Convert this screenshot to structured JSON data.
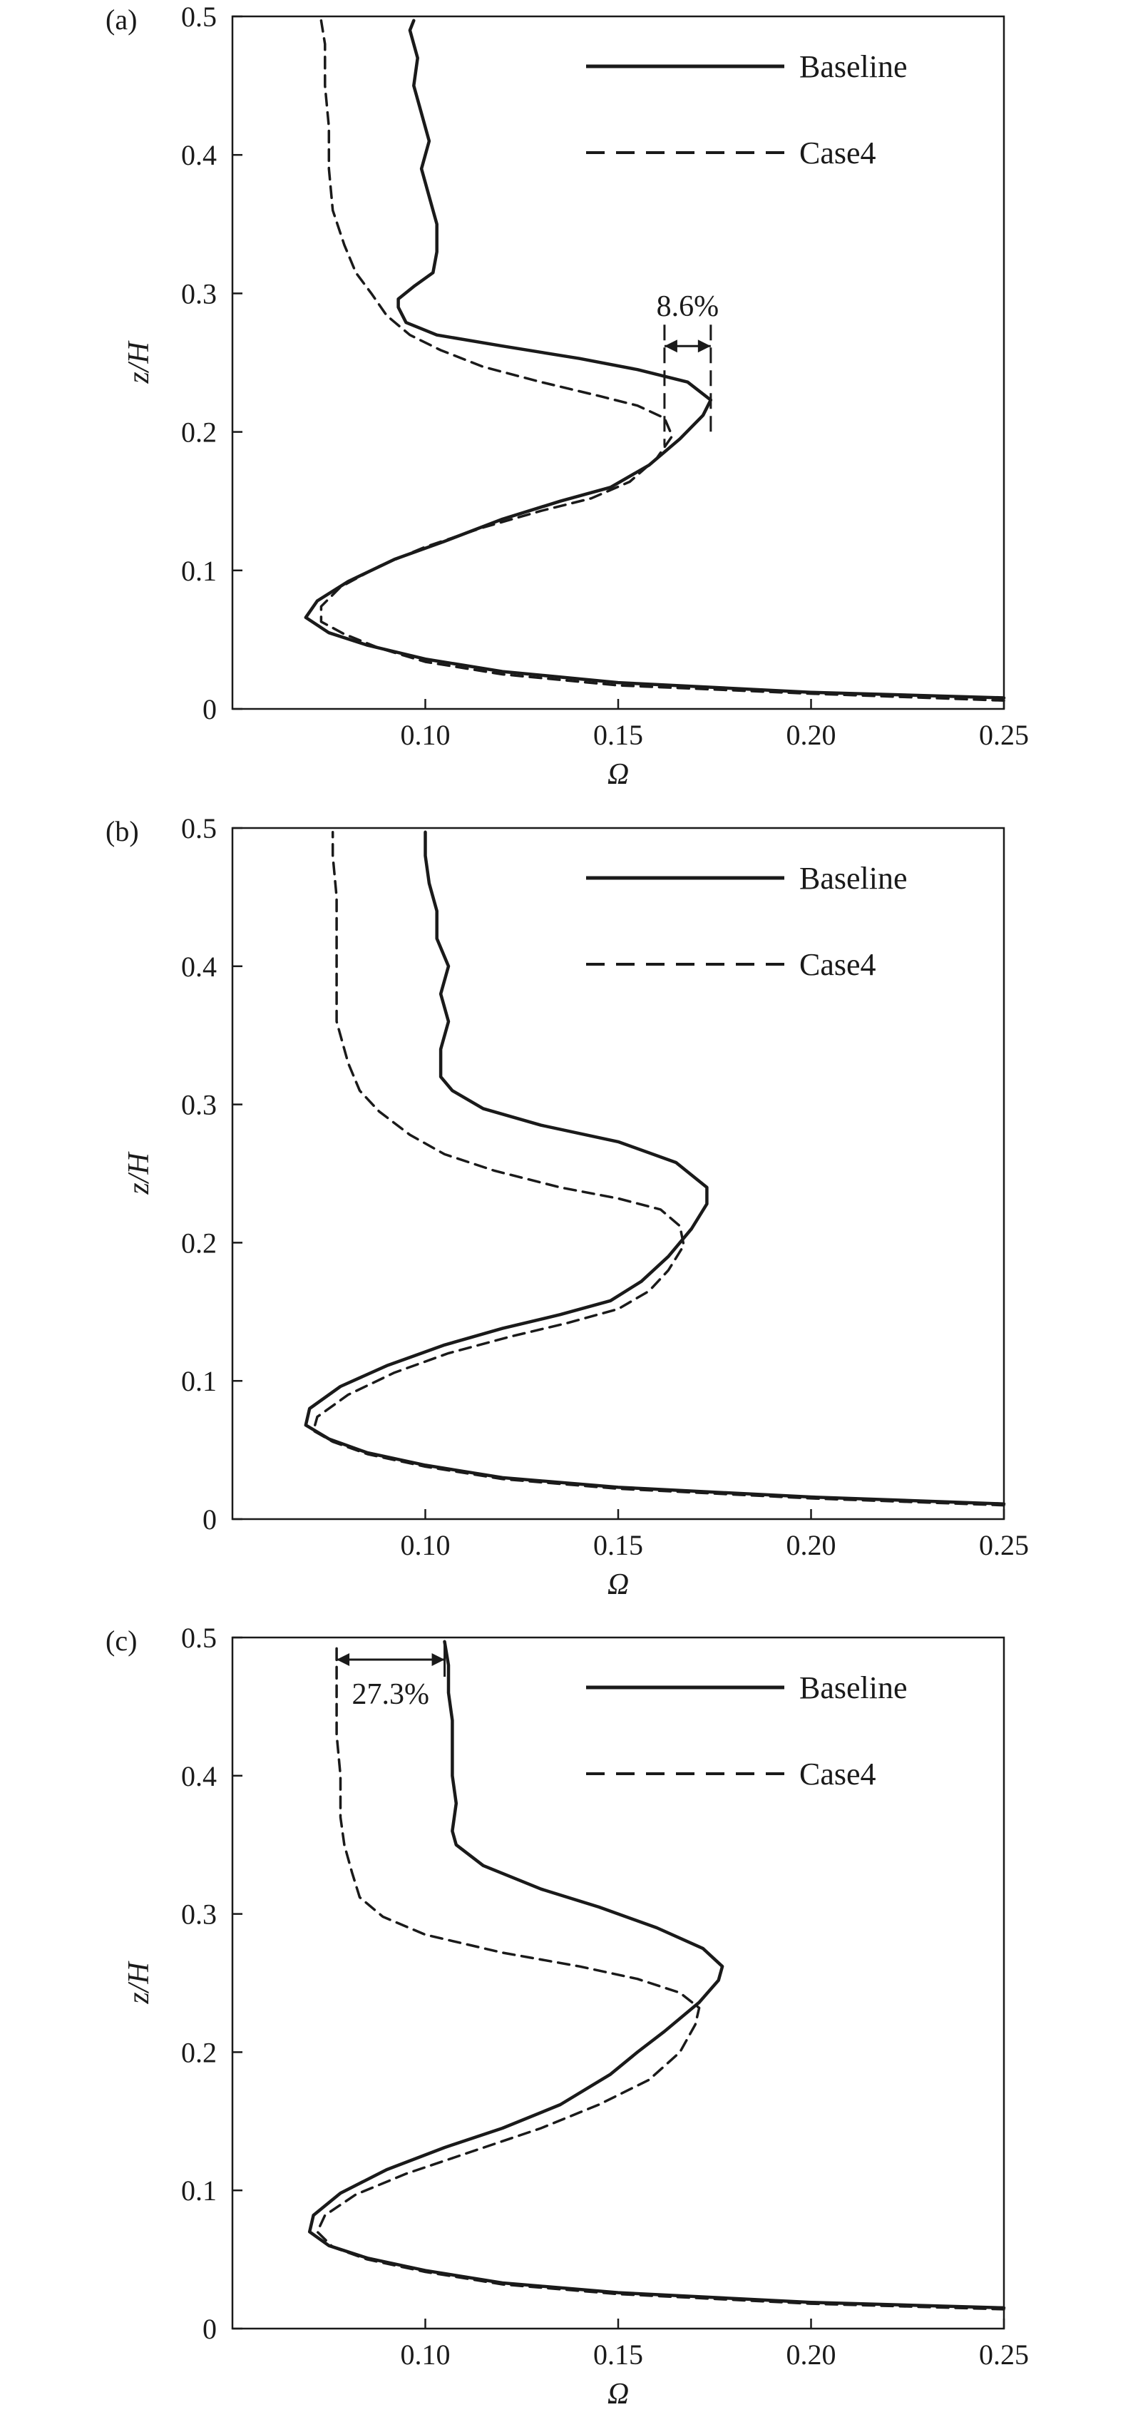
{
  "figure": {
    "colors": {
      "line": "#1a1a1a",
      "background": "#ffffff"
    }
  },
  "chart_data": [
    {
      "panel_label": "(a)",
      "type": "line",
      "xlabel": "Ω",
      "ylabel": "z/H",
      "xlim": [
        0.05,
        0.25
      ],
      "ylim": [
        0,
        0.5
      ],
      "xticks": [
        "0.10",
        "0.15",
        "0.20",
        "0.25"
      ],
      "yticks": [
        "0",
        "0.1",
        "0.2",
        "0.3",
        "0.4",
        "0.5"
      ],
      "grid": false,
      "legend_position": "top-right",
      "series": [
        {
          "name": "Baseline",
          "style": "solid",
          "points": [
            [
              0.25,
              0.008
            ],
            [
              0.2,
              0.012
            ],
            [
              0.15,
              0.019
            ],
            [
              0.12,
              0.027
            ],
            [
              0.1,
              0.036
            ],
            [
              0.085,
              0.046
            ],
            [
              0.075,
              0.055
            ],
            [
              0.069,
              0.066
            ],
            [
              0.072,
              0.078
            ],
            [
              0.08,
              0.092
            ],
            [
              0.092,
              0.108
            ],
            [
              0.105,
              0.121
            ],
            [
              0.12,
              0.137
            ],
            [
              0.135,
              0.15
            ],
            [
              0.148,
              0.16
            ],
            [
              0.158,
              0.176
            ],
            [
              0.166,
              0.195
            ],
            [
              0.172,
              0.212
            ],
            [
              0.174,
              0.223
            ],
            [
              0.168,
              0.236
            ],
            [
              0.155,
              0.245
            ],
            [
              0.14,
              0.253
            ],
            [
              0.12,
              0.262
            ],
            [
              0.103,
              0.27
            ],
            [
              0.095,
              0.279
            ],
            [
              0.093,
              0.29
            ],
            [
              0.093,
              0.296
            ],
            [
              0.097,
              0.305
            ],
            [
              0.102,
              0.315
            ],
            [
              0.103,
              0.33
            ],
            [
              0.103,
              0.35
            ],
            [
              0.101,
              0.37
            ],
            [
              0.099,
              0.39
            ],
            [
              0.101,
              0.41
            ],
            [
              0.099,
              0.43
            ],
            [
              0.097,
              0.45
            ],
            [
              0.098,
              0.47
            ],
            [
              0.096,
              0.49
            ],
            [
              0.097,
              0.497
            ]
          ]
        },
        {
          "name": "Case4",
          "style": "dashed",
          "points": [
            [
              0.25,
              0.006
            ],
            [
              0.2,
              0.011
            ],
            [
              0.15,
              0.017
            ],
            [
              0.12,
              0.025
            ],
            [
              0.1,
              0.034
            ],
            [
              0.088,
              0.044
            ],
            [
              0.079,
              0.054
            ],
            [
              0.073,
              0.063
            ],
            [
              0.073,
              0.074
            ],
            [
              0.078,
              0.088
            ],
            [
              0.088,
              0.103
            ],
            [
              0.1,
              0.117
            ],
            [
              0.115,
              0.131
            ],
            [
              0.13,
              0.143
            ],
            [
              0.143,
              0.152
            ],
            [
              0.153,
              0.164
            ],
            [
              0.16,
              0.181
            ],
            [
              0.164,
              0.197
            ],
            [
              0.162,
              0.21
            ],
            [
              0.155,
              0.219
            ],
            [
              0.145,
              0.226
            ],
            [
              0.13,
              0.236
            ],
            [
              0.115,
              0.247
            ],
            [
              0.104,
              0.259
            ],
            [
              0.096,
              0.27
            ],
            [
              0.09,
              0.284
            ],
            [
              0.086,
              0.3
            ],
            [
              0.082,
              0.315
            ],
            [
              0.079,
              0.335
            ],
            [
              0.076,
              0.36
            ],
            [
              0.075,
              0.39
            ],
            [
              0.075,
              0.42
            ],
            [
              0.074,
              0.45
            ],
            [
              0.074,
              0.48
            ],
            [
              0.073,
              0.497
            ]
          ]
        }
      ],
      "annotation": {
        "text": "8.6%",
        "x_from": 0.162,
        "x_to": 0.174,
        "y": 0.262
      }
    },
    {
      "panel_label": "(b)",
      "type": "line",
      "xlabel": "Ω",
      "ylabel": "z/H",
      "xlim": [
        0.05,
        0.25
      ],
      "ylim": [
        0,
        0.5
      ],
      "xticks": [
        "0.10",
        "0.15",
        "0.20",
        "0.25"
      ],
      "yticks": [
        "0",
        "0.1",
        "0.2",
        "0.3",
        "0.4",
        "0.5"
      ],
      "grid": false,
      "legend_position": "top-right",
      "series": [
        {
          "name": "Baseline",
          "style": "solid",
          "points": [
            [
              0.25,
              0.011
            ],
            [
              0.2,
              0.016
            ],
            [
              0.15,
              0.023
            ],
            [
              0.12,
              0.03
            ],
            [
              0.1,
              0.039
            ],
            [
              0.085,
              0.048
            ],
            [
              0.075,
              0.058
            ],
            [
              0.069,
              0.068
            ],
            [
              0.07,
              0.08
            ],
            [
              0.078,
              0.096
            ],
            [
              0.09,
              0.111
            ],
            [
              0.105,
              0.126
            ],
            [
              0.12,
              0.138
            ],
            [
              0.135,
              0.148
            ],
            [
              0.148,
              0.158
            ],
            [
              0.156,
              0.172
            ],
            [
              0.163,
              0.19
            ],
            [
              0.169,
              0.21
            ],
            [
              0.173,
              0.228
            ],
            [
              0.173,
              0.24
            ],
            [
              0.165,
              0.258
            ],
            [
              0.15,
              0.273
            ],
            [
              0.13,
              0.285
            ],
            [
              0.115,
              0.297
            ],
            [
              0.107,
              0.31
            ],
            [
              0.104,
              0.32
            ],
            [
              0.104,
              0.34
            ],
            [
              0.106,
              0.36
            ],
            [
              0.104,
              0.38
            ],
            [
              0.106,
              0.4
            ],
            [
              0.103,
              0.42
            ],
            [
              0.103,
              0.44
            ],
            [
              0.101,
              0.46
            ],
            [
              0.1,
              0.48
            ],
            [
              0.1,
              0.497
            ]
          ]
        },
        {
          "name": "Case4",
          "style": "dashed",
          "points": [
            [
              0.25,
              0.01
            ],
            [
              0.2,
              0.015
            ],
            [
              0.15,
              0.022
            ],
            [
              0.12,
              0.029
            ],
            [
              0.1,
              0.038
            ],
            [
              0.085,
              0.047
            ],
            [
              0.076,
              0.056
            ],
            [
              0.071,
              0.064
            ],
            [
              0.072,
              0.074
            ],
            [
              0.08,
              0.09
            ],
            [
              0.092,
              0.106
            ],
            [
              0.106,
              0.12
            ],
            [
              0.122,
              0.132
            ],
            [
              0.137,
              0.142
            ],
            [
              0.15,
              0.152
            ],
            [
              0.158,
              0.165
            ],
            [
              0.163,
              0.18
            ],
            [
              0.167,
              0.198
            ],
            [
              0.166,
              0.212
            ],
            [
              0.161,
              0.224
            ],
            [
              0.15,
              0.232
            ],
            [
              0.135,
              0.24
            ],
            [
              0.118,
              0.252
            ],
            [
              0.105,
              0.264
            ],
            [
              0.096,
              0.278
            ],
            [
              0.088,
              0.295
            ],
            [
              0.083,
              0.31
            ],
            [
              0.08,
              0.33
            ],
            [
              0.077,
              0.36
            ],
            [
              0.077,
              0.39
            ],
            [
              0.077,
              0.42
            ],
            [
              0.077,
              0.45
            ],
            [
              0.076,
              0.48
            ],
            [
              0.076,
              0.497
            ]
          ]
        }
      ]
    },
    {
      "panel_label": "(c)",
      "type": "line",
      "xlabel": "Ω",
      "ylabel": "z/H",
      "xlim": [
        0.05,
        0.25
      ],
      "ylim": [
        0,
        0.5
      ],
      "xticks": [
        "0.10",
        "0.15",
        "0.20",
        "0.25"
      ],
      "yticks": [
        "0",
        "0.1",
        "0.2",
        "0.3",
        "0.4",
        "0.5"
      ],
      "grid": false,
      "legend_position": "top-right",
      "series": [
        {
          "name": "Baseline",
          "style": "solid",
          "points": [
            [
              0.25,
              0.015
            ],
            [
              0.2,
              0.019
            ],
            [
              0.15,
              0.026
            ],
            [
              0.12,
              0.033
            ],
            [
              0.1,
              0.042
            ],
            [
              0.085,
              0.051
            ],
            [
              0.075,
              0.06
            ],
            [
              0.07,
              0.07
            ],
            [
              0.071,
              0.082
            ],
            [
              0.078,
              0.098
            ],
            [
              0.09,
              0.115
            ],
            [
              0.105,
              0.131
            ],
            [
              0.12,
              0.145
            ],
            [
              0.135,
              0.162
            ],
            [
              0.148,
              0.184
            ],
            [
              0.155,
              0.2
            ],
            [
              0.162,
              0.215
            ],
            [
              0.171,
              0.236
            ],
            [
              0.176,
              0.252
            ],
            [
              0.177,
              0.262
            ],
            [
              0.172,
              0.275
            ],
            [
              0.16,
              0.29
            ],
            [
              0.145,
              0.305
            ],
            [
              0.13,
              0.318
            ],
            [
              0.115,
              0.335
            ],
            [
              0.108,
              0.35
            ],
            [
              0.107,
              0.36
            ],
            [
              0.108,
              0.38
            ],
            [
              0.107,
              0.4
            ],
            [
              0.107,
              0.42
            ],
            [
              0.107,
              0.44
            ],
            [
              0.106,
              0.46
            ],
            [
              0.106,
              0.48
            ],
            [
              0.105,
              0.497
            ]
          ]
        },
        {
          "name": "Case4",
          "style": "dashed",
          "points": [
            [
              0.25,
              0.014
            ],
            [
              0.2,
              0.018
            ],
            [
              0.15,
              0.025
            ],
            [
              0.12,
              0.032
            ],
            [
              0.1,
              0.041
            ],
            [
              0.085,
              0.05
            ],
            [
              0.076,
              0.059
            ],
            [
              0.072,
              0.07
            ],
            [
              0.074,
              0.082
            ],
            [
              0.082,
              0.097
            ],
            [
              0.095,
              0.112
            ],
            [
              0.112,
              0.128
            ],
            [
              0.13,
              0.145
            ],
            [
              0.145,
              0.162
            ],
            [
              0.158,
              0.18
            ],
            [
              0.166,
              0.2
            ],
            [
              0.17,
              0.22
            ],
            [
              0.171,
              0.232
            ],
            [
              0.166,
              0.243
            ],
            [
              0.155,
              0.253
            ],
            [
              0.14,
              0.262
            ],
            [
              0.12,
              0.272
            ],
            [
              0.1,
              0.285
            ],
            [
              0.089,
              0.298
            ],
            [
              0.083,
              0.312
            ],
            [
              0.081,
              0.33
            ],
            [
              0.079,
              0.35
            ],
            [
              0.078,
              0.37
            ],
            [
              0.078,
              0.4
            ],
            [
              0.077,
              0.43
            ],
            [
              0.077,
              0.46
            ],
            [
              0.077,
              0.497
            ]
          ]
        }
      ],
      "annotation": {
        "text": "27.3%",
        "x_from": 0.077,
        "x_to": 0.105,
        "y": 0.484
      }
    }
  ]
}
